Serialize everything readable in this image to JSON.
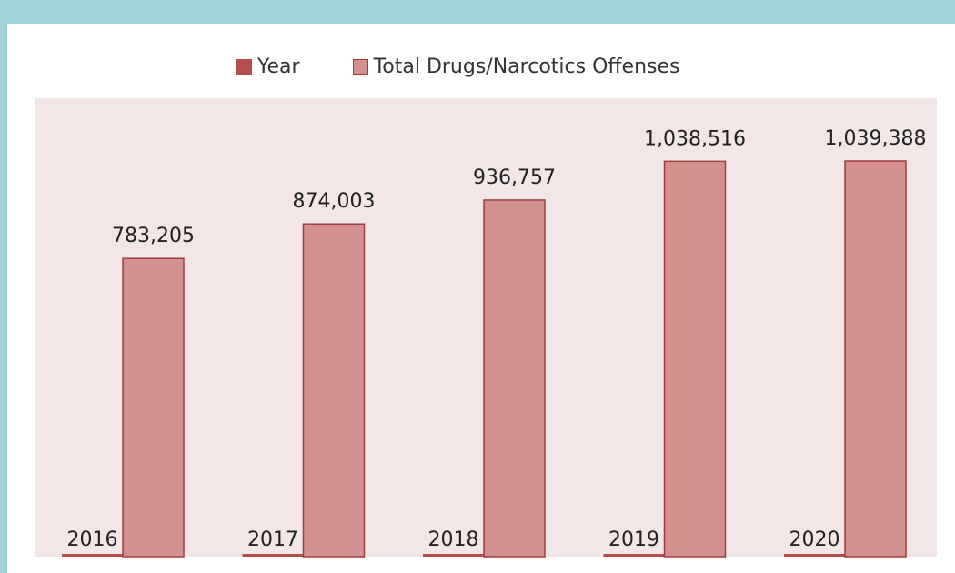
{
  "chart_data": {
    "type": "bar",
    "categories": [
      "2016",
      "2017",
      "2018",
      "2019",
      "2020"
    ],
    "series": [
      {
        "name": "Year",
        "values": [
          2016,
          2017,
          2018,
          2019,
          2020
        ]
      },
      {
        "name": "Total Drugs/Narcotics Offenses",
        "values": [
          783205,
          874003,
          936757,
          1038516,
          1039388
        ]
      }
    ],
    "data_labels": {
      "year": [
        "2016",
        "2017",
        "2018",
        "2019",
        "2020"
      ],
      "total": [
        "783,205",
        "874,003",
        "936,757",
        "1,038,516",
        "1,039,388"
      ]
    },
    "legend": [
      {
        "label": "Year",
        "color": "#b84b4b"
      },
      {
        "label": "Total Drugs/Narcotics Offenses",
        "color": "#d4908f"
      }
    ],
    "legend_position": "top",
    "grid": false,
    "colors": {
      "plot_background": "#f2e6e6",
      "bar_fill": "#d4908f",
      "bar_stroke": "#9c3e3e",
      "year_bar": "#b84b4b"
    }
  }
}
